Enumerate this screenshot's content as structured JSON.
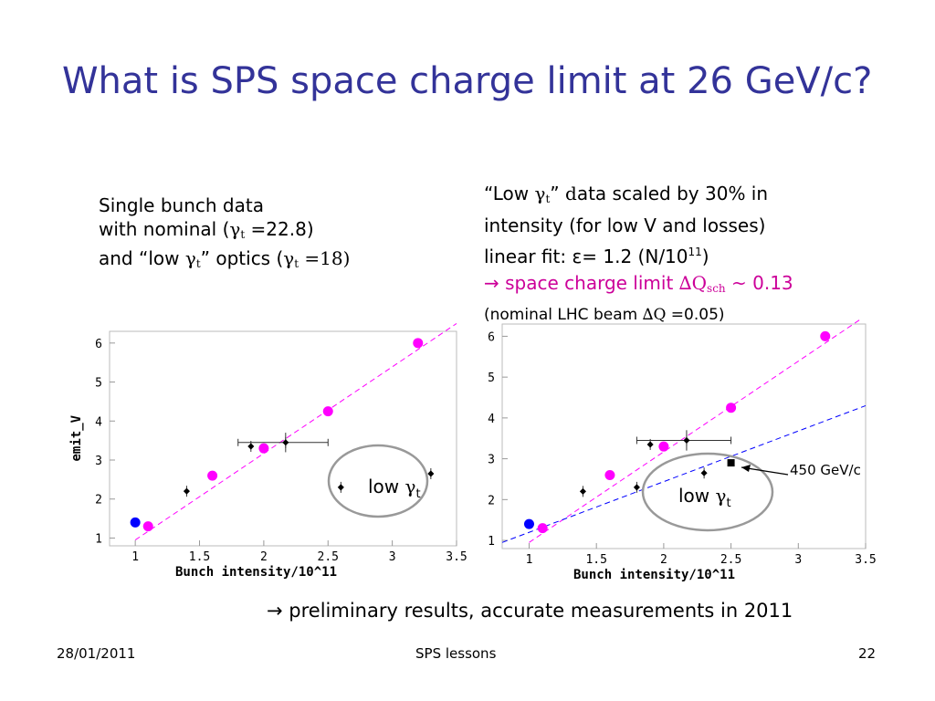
{
  "title": "What is SPS space charge limit at 26 GeV/c?",
  "left_notes": {
    "line1": "Single bunch data",
    "line2_pre": "with nominal (",
    "gamma": "γ",
    "t": "t",
    "line2_post": " =22.8)",
    "line3_pre": "and “low ",
    "line3_mid": "” optics (",
    "line3_post": " =18)"
  },
  "right_notes": {
    "line1_pre": "“Low ",
    "line1_mid": "” ",
    "line1_d": "d",
    "line1_post": "ata scaled by 30% in",
    "line2": "intensity (for low V and losses)",
    "line3_pre": "linear fit:  ε= 1.2 (N/10",
    "line3_sup": "11",
    "line3_post": ")",
    "line4_pre": "→ space charge limit ",
    "line4_dq": "∆Q",
    "line4_sub": "sch",
    "line4_post": " ~ 0.13",
    "line5_pre": "(nominal LHC beam ",
    "line5_dq": "∆Q",
    "line5_post": " =0.05)"
  },
  "conclusion": "→ preliminary results, accurate measurements in 2011",
  "footer": {
    "date": "28/01/2011",
    "center": "SPS lessons",
    "page": "22"
  },
  "colors": {
    "title": "#333399",
    "magenta": "#ff00ff",
    "blue": "#0000ff",
    "black": "#000000",
    "accent_text": "#cc0099"
  },
  "chart_data": [
    {
      "type": "scatter",
      "xlabel": "Bunch intensity/10^11",
      "ylabel": "emit_V",
      "xlim": [
        0.8,
        3.5
      ],
      "ylim": [
        0.8,
        6.3
      ],
      "xticks": [
        "1",
        "1.5",
        "2",
        "2.5",
        "3",
        "3.5"
      ],
      "yticks": [
        "1",
        "2",
        "3",
        "4",
        "5",
        "6"
      ],
      "annotation": {
        "text_pre": "low ",
        "gamma": "γ",
        "t": "t"
      },
      "series": [
        {
          "color": "#ff00ff",
          "points": [
            [
              1.1,
              1.3
            ],
            [
              1.6,
              2.6
            ],
            [
              2.0,
              3.3
            ],
            [
              2.5,
              4.25
            ],
            [
              3.2,
              6.0
            ]
          ]
        },
        {
          "color": "#0000ff",
          "points": [
            [
              1.0,
              1.4
            ]
          ]
        },
        {
          "color": "#000000",
          "points": [
            [
              1.4,
              2.2
            ],
            [
              1.9,
              3.35
            ],
            [
              2.17,
              3.45
            ],
            [
              2.6,
              2.3
            ],
            [
              3.3,
              2.65
            ]
          ]
        }
      ],
      "fits": [
        {
          "color": "#ff00ff",
          "from": [
            1.0,
            0.95
          ],
          "to": [
            3.5,
            6.5
          ]
        }
      ]
    },
    {
      "type": "scatter",
      "xlabel": "Bunch intensity/10^11",
      "ylabel": "",
      "xlim": [
        0.8,
        3.5
      ],
      "ylim": [
        0.8,
        6.3
      ],
      "xticks": [
        "1",
        "1.5",
        "2",
        "2.5",
        "3",
        "3.5"
      ],
      "yticks": [
        "1",
        "2",
        "3",
        "4",
        "5",
        "6"
      ],
      "annotation": {
        "text_pre": "low ",
        "gamma": "γ",
        "t": "t"
      },
      "callout": "450 GeV/c",
      "series": [
        {
          "color": "#ff00ff",
          "points": [
            [
              1.1,
              1.3
            ],
            [
              1.6,
              2.6
            ],
            [
              2.0,
              3.3
            ],
            [
              2.5,
              4.25
            ],
            [
              3.2,
              6.0
            ]
          ]
        },
        {
          "color": "#0000ff",
          "points": [
            [
              1.0,
              1.4
            ]
          ]
        },
        {
          "color": "#000000",
          "points": [
            [
              1.4,
              2.2
            ],
            [
              1.8,
              2.3
            ],
            [
              1.9,
              3.35
            ],
            [
              2.17,
              3.45
            ],
            [
              2.3,
              2.65
            ]
          ]
        },
        {
          "color": "#000000",
          "points": [
            [
              2.5,
              2.9
            ]
          ]
        }
      ],
      "fits": [
        {
          "color": "#ff00ff",
          "from": [
            1.0,
            0.95
          ],
          "to": [
            3.5,
            6.5
          ]
        },
        {
          "color": "#0000ff",
          "from": [
            0.8,
            0.95
          ],
          "to": [
            3.5,
            4.3
          ]
        }
      ]
    }
  ]
}
